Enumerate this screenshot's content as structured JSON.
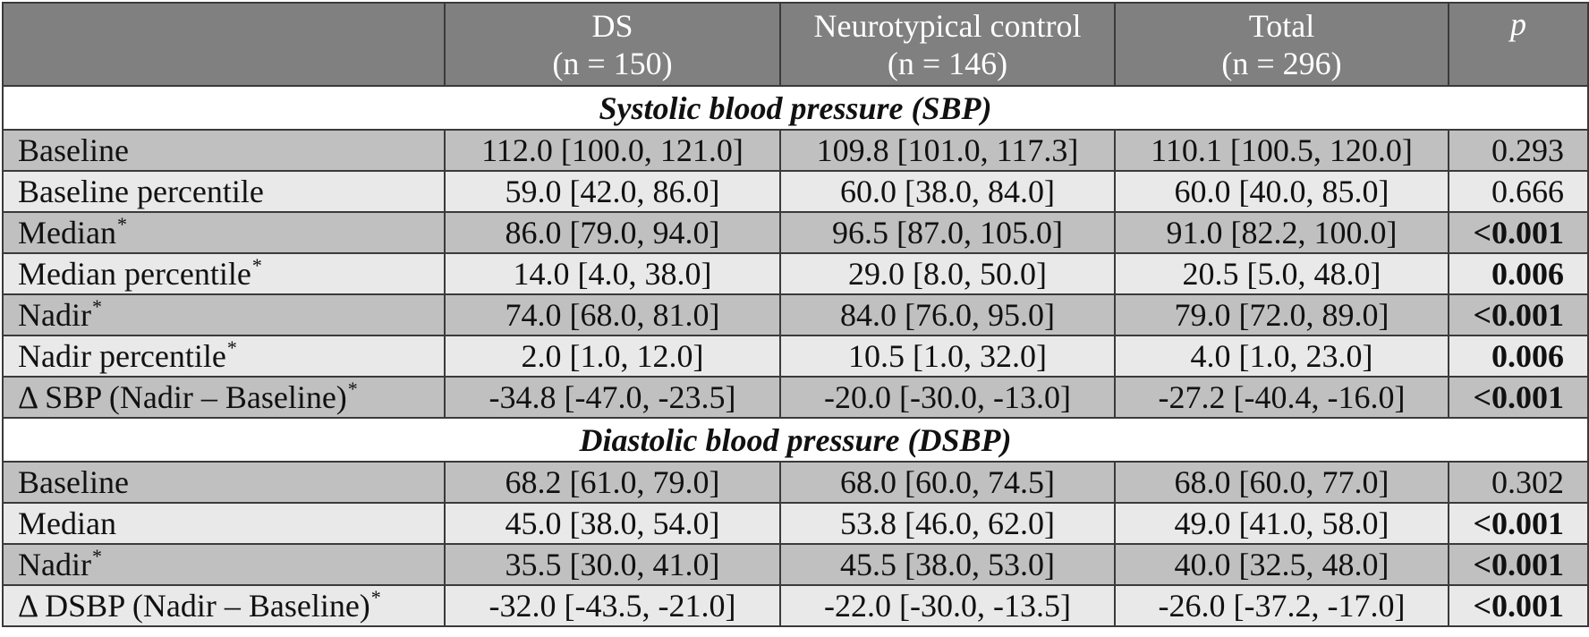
{
  "header": {
    "col0": "",
    "groups": [
      {
        "name": "DS",
        "n": "(n = 150)"
      },
      {
        "name": "Neurotypical control",
        "n": "(n = 146)"
      },
      {
        "name": "Total",
        "n": "(n = 296)"
      }
    ],
    "p_label": "p"
  },
  "sections": [
    {
      "title": "Systolic blood pressure (SBP)",
      "rows": [
        {
          "label": "Baseline",
          "marker": "",
          "ds": "112.0 [100.0, 121.0]",
          "control": "109.8 [101.0, 117.3]",
          "total": "110.1 [100.5, 120.0]",
          "p": "0.293"
        },
        {
          "label": "Baseline percentile",
          "marker": "",
          "ds": "59.0 [42.0, 86.0]",
          "control": "60.0 [38.0, 84.0]",
          "total": "60.0 [40.0, 85.0]",
          "p": "0.666"
        },
        {
          "label": "Median",
          "marker": "*",
          "ds": "86.0 [79.0, 94.0]",
          "control": "96.5 [87.0, 105.0]",
          "total": "91.0 [82.2, 100.0]",
          "p": "<0.001"
        },
        {
          "label": "Median percentile",
          "marker": "*",
          "ds": "14.0 [4.0, 38.0]",
          "control": "29.0 [8.0, 50.0]",
          "total": "20.5 [5.0, 48.0]",
          "p": "0.006"
        },
        {
          "label": "Nadir",
          "marker": "*",
          "ds": "74.0 [68.0, 81.0]",
          "control": "84.0 [76.0, 95.0]",
          "total": "79.0 [72.0, 89.0]",
          "p": "<0.001"
        },
        {
          "label": "Nadir percentile",
          "marker": "*",
          "ds": "2.0 [1.0, 12.0]",
          "control": "10.5 [1.0, 32.0]",
          "total": "4.0 [1.0, 23.0]",
          "p": "0.006"
        },
        {
          "label": "Δ SBP (Nadir – Baseline)",
          "marker": "*",
          "ds": "-34.8 [-47.0, -23.5]",
          "control": "-20.0 [-30.0, -13.0]",
          "total": "-27.2 [-40.4, -16.0]",
          "p": "<0.001"
        }
      ]
    },
    {
      "title": "Diastolic blood pressure (DSBP)",
      "rows": [
        {
          "label": "Baseline",
          "marker": "",
          "ds": "68.2 [61.0, 79.0]",
          "control": "68.0 [60.0, 74.5]",
          "total": "68.0 [60.0, 77.0]",
          "p": "0.302"
        },
        {
          "label": "Median",
          "marker": "",
          "ds": "45.0 [38.0, 54.0]",
          "control": "53.8 [46.0, 62.0]",
          "total": "49.0 [41.0, 58.0]",
          "p": "<0.001"
        },
        {
          "label": "Nadir",
          "marker": "*",
          "ds": "35.5 [30.0, 41.0]",
          "control": "45.5 [38.0, 53.0]",
          "total": "40.0 [32.5, 48.0]",
          "p": "<0.001"
        },
        {
          "label": "Δ DSBP (Nadir – Baseline)",
          "marker": "*",
          "ds": "-32.0 [-43.5, -21.0]",
          "control": "-22.0 [-30.0, -13.5]",
          "total": "-26.0 [-37.2, -17.0]",
          "p": "<0.001"
        }
      ]
    }
  ],
  "colors": {
    "header_bg": "#808080",
    "row_dark": "#c0c0c0",
    "row_light": "#e9e9e9",
    "border": "#3a3a3a"
  }
}
